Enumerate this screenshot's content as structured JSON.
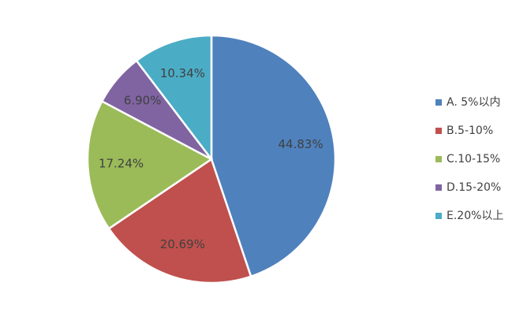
{
  "chart_data": {
    "type": "pie",
    "categories": [
      "A. 5%以内",
      "B.5-10%",
      "C.10-15%",
      "D.15-20%",
      "E.20%以上"
    ],
    "values": [
      44.83,
      20.69,
      17.24,
      6.9,
      10.34
    ],
    "value_labels": [
      "44.83%",
      "20.69%",
      "17.24%",
      "6.90%",
      "10.34%"
    ],
    "colors": [
      "#4f81bd",
      "#c0504d",
      "#9bbb59",
      "#8064a2",
      "#4bacc6"
    ],
    "legend": "right"
  }
}
